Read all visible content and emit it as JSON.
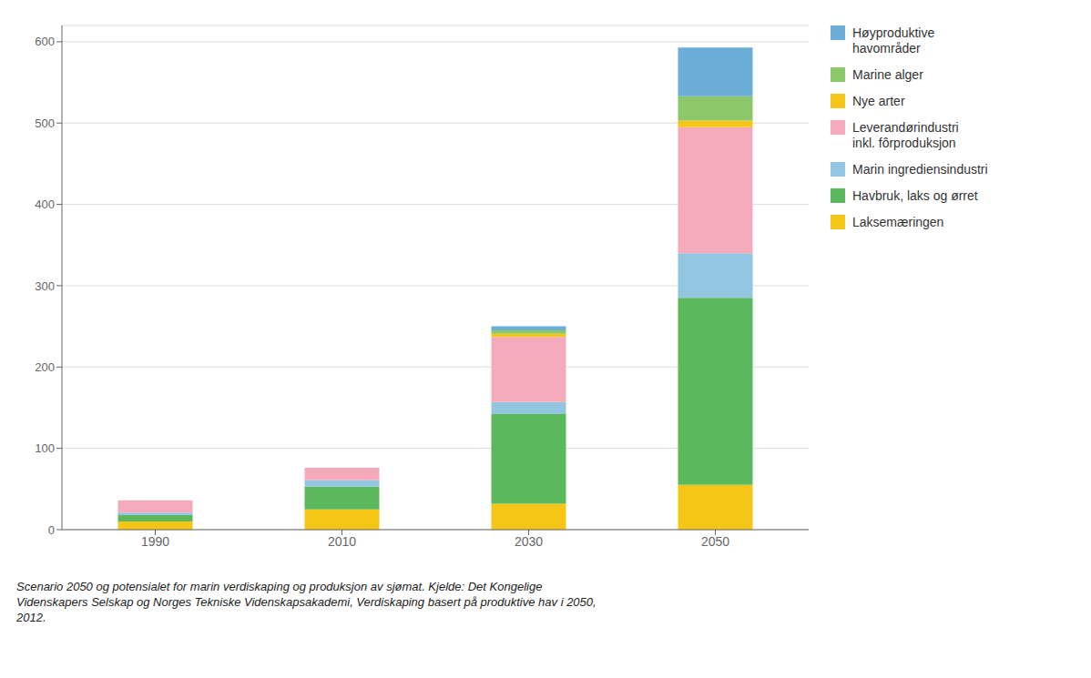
{
  "chart_data": {
    "type": "bar",
    "stacked": true,
    "categories": [
      "1990",
      "2010",
      "2030",
      "2050"
    ],
    "series": [
      {
        "name": "Laksemæringen",
        "color": "#F5C518",
        "values": [
          10,
          25,
          32,
          55
        ]
      },
      {
        "name": "Havbruk, laks og ørret",
        "color": "#5CB85C",
        "values": [
          8,
          28,
          110,
          230
        ]
      },
      {
        "name": "Marin ingrediensindustri",
        "color": "#92C5E0",
        "values": [
          3,
          8,
          15,
          55
        ]
      },
      {
        "name": "Leverandørindustri\ninkl. fôrproduksjon",
        "color": "#F4AABA",
        "values": [
          15,
          15,
          80,
          155
        ]
      },
      {
        "name": "Nye arter",
        "color": "#F5C518",
        "values": [
          0,
          0,
          4,
          8
        ]
      },
      {
        "name": "Marine alger",
        "color": "#8CC86A",
        "values": [
          0,
          0,
          4,
          30
        ]
      },
      {
        "name": "Høyproduktive\nhavområder",
        "color": "#6BADD6",
        "values": [
          0,
          0,
          5,
          60
        ]
      }
    ],
    "ylim": [
      0,
      620
    ],
    "yticks": [
      0,
      100,
      200,
      300,
      400,
      500,
      600
    ],
    "grid": true,
    "legend": "right",
    "caption": "Scenario 2050 og potensialet for marin verdiskaping og produksjon av sjømat. Kjelde: Det Kongelige\nVidenskapers Selskap og Norges Tekniske Videnskapsakademi, Verdiskaping basert på produktive hav i 2050,\n2012."
  }
}
